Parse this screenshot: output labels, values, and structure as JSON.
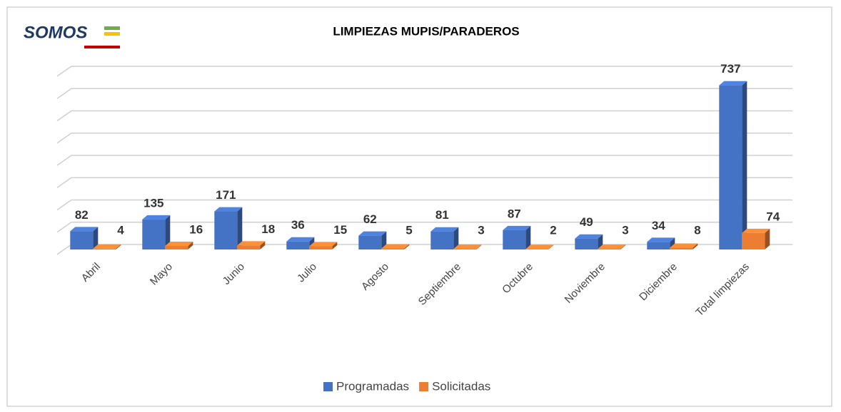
{
  "logo": "SOMOS",
  "chart_data": {
    "type": "bar3d",
    "title": "LIMPIEZAS MUPIS/PARADEROS",
    "categories": [
      "Abril",
      "Mayo",
      "Junio",
      "Julio",
      "Agosto",
      "Septiembre",
      "Octubre",
      "Noviembre",
      "Diciembre",
      "Total limpiezas"
    ],
    "series": [
      {
        "name": "Programadas",
        "color": "#4472c4",
        "values": [
          82,
          135,
          171,
          36,
          62,
          81,
          87,
          49,
          34,
          737
        ]
      },
      {
        "name": "Solicitadas",
        "color": "#ed7d31",
        "values": [
          4,
          16,
          18,
          15,
          5,
          3,
          2,
          3,
          8,
          74
        ]
      }
    ],
    "ylim": [
      0,
      800
    ],
    "yticks": [
      0,
      100,
      200,
      300,
      400,
      500,
      600,
      700,
      800
    ],
    "grid": true,
    "legend": "bottom"
  }
}
